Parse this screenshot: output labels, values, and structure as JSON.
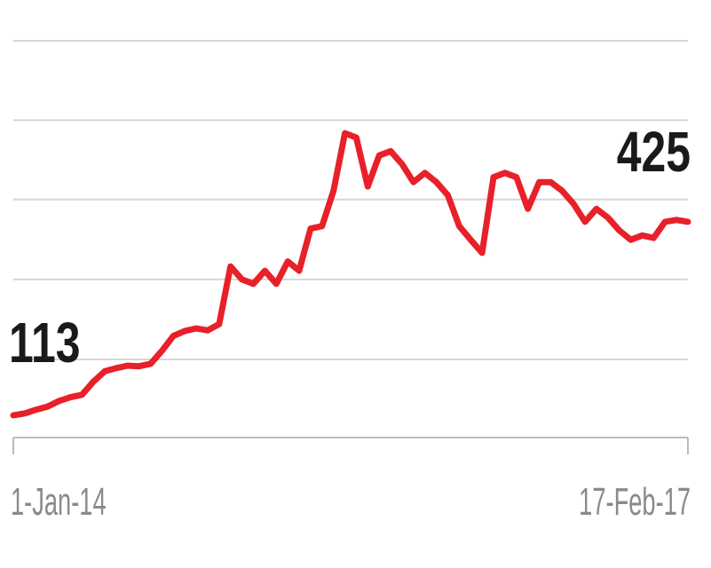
{
  "chart_data": {
    "type": "line",
    "categories": [
      "1-Jan-14",
      null,
      null,
      null,
      null,
      null,
      null,
      null,
      null,
      null,
      null,
      null,
      null,
      null,
      null,
      null,
      null,
      null,
      null,
      null,
      null,
      null,
      null,
      null,
      null,
      null,
      null,
      null,
      null,
      null,
      null,
      null,
      null,
      null,
      null,
      null,
      null,
      null,
      null,
      null,
      null,
      null,
      null,
      null,
      null,
      null,
      null,
      null,
      null,
      null,
      null,
      null,
      null,
      null,
      null,
      null,
      null,
      null,
      null,
      "17-Feb-17"
    ],
    "values": [
      113,
      116,
      122,
      127,
      136,
      142,
      146,
      167,
      184,
      189,
      193,
      192,
      196,
      217,
      241,
      249,
      253,
      250,
      260,
      353,
      332,
      325,
      346,
      325,
      361,
      346,
      414,
      418,
      475,
      568,
      561,
      482,
      532,
      539,
      518,
      489,
      504,
      489,
      468,
      418,
      396,
      375,
      497,
      504,
      497,
      446,
      489,
      489,
      475,
      454,
      425,
      446,
      432,
      411,
      396,
      403,
      399,
      425,
      428,
      425
    ],
    "color": "#e8202a",
    "ylim": [
      77,
      717
    ],
    "yticks": [
      77,
      203,
      332,
      461,
      589,
      717
    ],
    "grid": true
  }
}
